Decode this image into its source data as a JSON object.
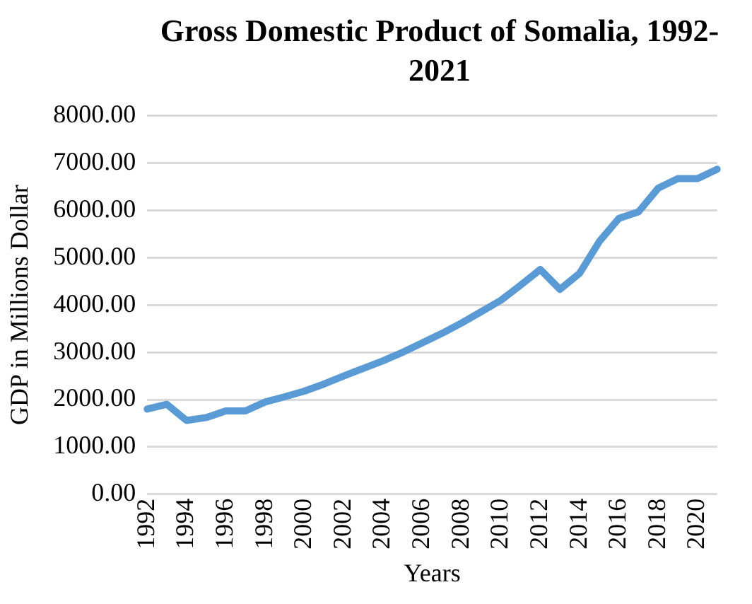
{
  "chart_data": {
    "type": "line",
    "title": "Gross Domestic Product of Somalia, 1992-2021",
    "xlabel": "Years",
    "ylabel": "GDP in Millions Dollar",
    "categories": [
      "1992",
      null,
      "1994",
      null,
      "1996",
      null,
      "1998",
      null,
      "2000",
      null,
      "2002",
      null,
      "2004",
      null,
      "2006",
      null,
      "2008",
      null,
      "2010",
      null,
      "2012",
      null,
      "2014",
      null,
      "2016",
      null,
      "2018",
      null,
      "2020",
      null
    ],
    "series": [
      {
        "color": "#5b9bd5",
        "values": [
          1800,
          1900,
          1560,
          1620,
          1760,
          1760,
          1950,
          2060,
          2180,
          2330,
          2500,
          2660,
          2820,
          3000,
          3200,
          3400,
          3620,
          3860,
          4100,
          4420,
          4750,
          4330,
          4670,
          5340,
          5830,
          5970,
          6470,
          6670,
          6670,
          6870
        ]
      }
    ],
    "ylim": [
      0,
      8000
    ],
    "yticks": [
      {
        "value": 0,
        "label": "0.00"
      },
      {
        "value": 1000,
        "label": "1000.00"
      },
      {
        "value": 2000,
        "label": "2000.00"
      },
      {
        "value": 3000,
        "label": "3000.00"
      },
      {
        "value": 4000,
        "label": "4000.00"
      },
      {
        "value": 5000,
        "label": "5000.00"
      },
      {
        "value": 6000,
        "label": "6000.00"
      },
      {
        "value": 7000,
        "label": "7000.00"
      },
      {
        "value": 8000,
        "label": "8000.00"
      }
    ],
    "grid": "y",
    "legend": false,
    "marker": "none",
    "line_style": "solid"
  }
}
